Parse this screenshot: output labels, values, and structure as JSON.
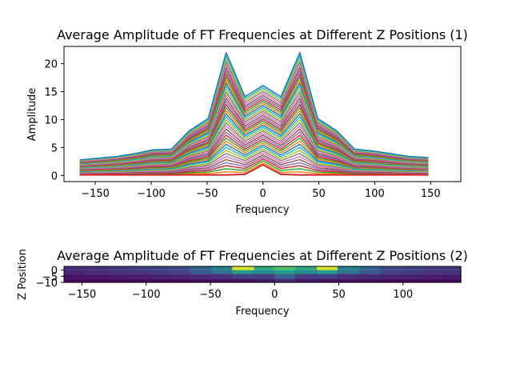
{
  "chart_data": [
    {
      "type": "line",
      "title": "Average Amplitude of FT Frequencies at Different Z Positions (1)",
      "xlabel": "Frequency",
      "ylabel": "Amplitude",
      "xlim": [
        -178,
        177
      ],
      "ylim": [
        -1.1,
        23.1
      ],
      "xticks": [
        -150,
        -100,
        -50,
        0,
        50,
        100,
        150
      ],
      "yticks": [
        0,
        5,
        10,
        15,
        20
      ],
      "x": [
        -164,
        -148,
        -131,
        -115,
        -98,
        -82,
        -66,
        -49,
        -33,
        -16,
        0,
        16,
        33,
        49,
        66,
        82,
        98,
        115,
        131,
        148
      ],
      "envelope_top": [
        2.8,
        3.1,
        3.4,
        3.9,
        4.6,
        4.7,
        8.0,
        10.2,
        22.0,
        14.1,
        16.1,
        14.1,
        22.0,
        10.2,
        8.0,
        4.7,
        4.4,
        3.9,
        3.4,
        3.2
      ],
      "highlight_series": {
        "x": [
          -164,
          -148,
          -131,
          -115,
          -98,
          -82,
          -66,
          -49,
          -33,
          -16,
          0,
          16,
          33,
          49,
          66,
          82,
          98,
          115,
          131,
          148
        ],
        "values": [
          0.1,
          0.1,
          0.1,
          0.1,
          0.1,
          0.1,
          0.1,
          0.1,
          0.1,
          0.2,
          1.9,
          0.2,
          0.1,
          0.1,
          0.1,
          0.1,
          0.1,
          0.1,
          0.1,
          0.1
        ],
        "color": "#d62728"
      },
      "layers": 40,
      "colors": [
        "#1f77b4",
        "#ff7f0e",
        "#2ca02c",
        "#d62728",
        "#9467bd",
        "#8c564b",
        "#e377c2",
        "#7f7f7f",
        "#bcbd22",
        "#17becf"
      ],
      "grid": false,
      "legend": "none"
    },
    {
      "type": "heatmap",
      "title": "Average Amplitude of FT Frequencies at Different Z Positions (2)",
      "xlabel": "Frequency",
      "ylabel": "Z Position",
      "xlim": [
        -164,
        145
      ],
      "ylim": [
        -10,
        3
      ],
      "xticks": [
        -150,
        -100,
        -50,
        0,
        50,
        100
      ],
      "yticks": [
        0,
        -5,
        -10
      ],
      "x_bins": [
        -164,
        -148,
        -131,
        -115,
        -98,
        -82,
        -66,
        -49,
        -33,
        -16,
        0,
        16,
        33,
        49,
        66,
        82,
        98,
        115,
        131,
        145
      ],
      "z_rows": [
        {
          "z_range": [
            0,
            3
          ],
          "values": [
            0.12,
            0.14,
            0.16,
            0.18,
            0.2,
            0.22,
            0.32,
            0.45,
            0.95,
            0.62,
            0.72,
            0.62,
            0.95,
            0.45,
            0.32,
            0.22,
            0.2,
            0.18,
            0.16,
            0.14
          ]
        },
        {
          "z_range": [
            -3,
            0
          ],
          "values": [
            0.1,
            0.12,
            0.14,
            0.16,
            0.18,
            0.2,
            0.28,
            0.38,
            0.55,
            0.48,
            0.55,
            0.48,
            0.55,
            0.38,
            0.28,
            0.2,
            0.18,
            0.16,
            0.14,
            0.12
          ]
        },
        {
          "z_range": [
            -7,
            -3
          ],
          "values": [
            0.05,
            0.06,
            0.07,
            0.08,
            0.09,
            0.1,
            0.12,
            0.14,
            0.2,
            0.18,
            0.32,
            0.18,
            0.2,
            0.14,
            0.12,
            0.1,
            0.09,
            0.08,
            0.07,
            0.06
          ]
        },
        {
          "z_range": [
            -10,
            -7
          ],
          "values": [
            0.02,
            0.02,
            0.02,
            0.03,
            0.03,
            0.03,
            0.04,
            0.05,
            0.05,
            0.06,
            0.12,
            0.06,
            0.05,
            0.05,
            0.04,
            0.03,
            0.03,
            0.03,
            0.02,
            0.02
          ]
        }
      ],
      "colormap": "viridis",
      "grid": false,
      "legend": "none"
    }
  ]
}
